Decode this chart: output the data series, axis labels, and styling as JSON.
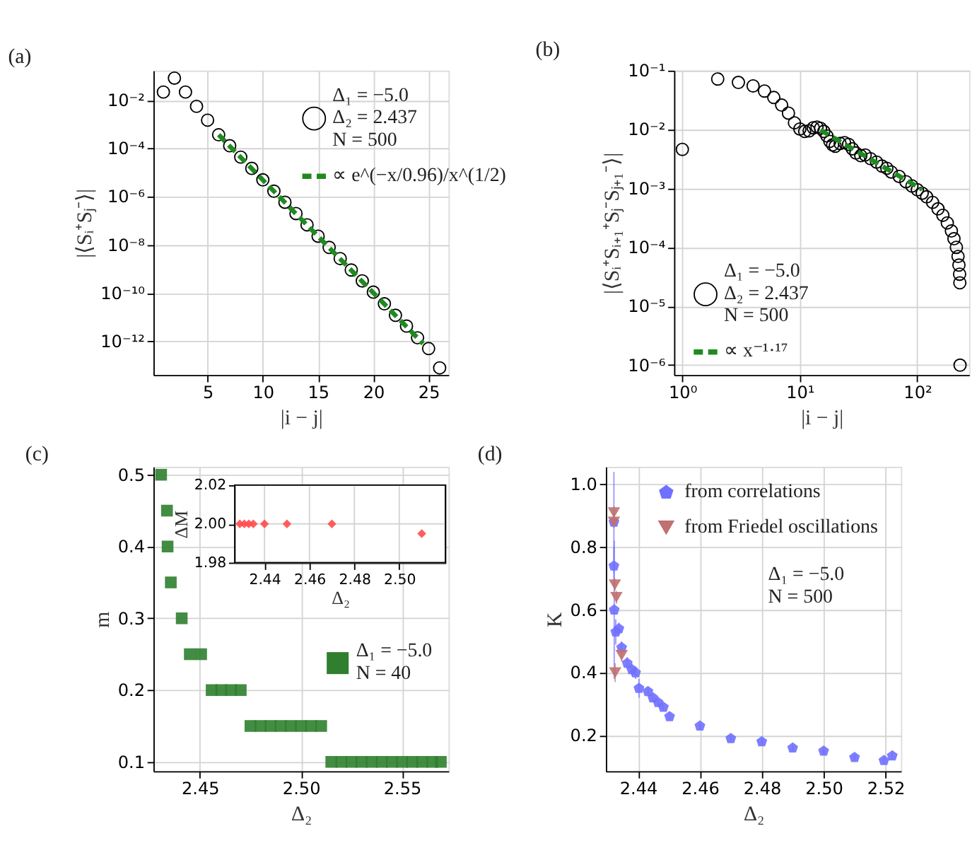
{
  "chart_data": [
    {
      "type": "scatter",
      "title": "(a)",
      "xlabel": "|i − j|",
      "ylabel": "|⟨Sᵢ⁺Sⱼ⁻⟩|",
      "log": "y",
      "grid": true,
      "legend": "top right",
      "xlim": [
        0.1,
        26.8
      ],
      "xticks": [
        5,
        10,
        15,
        20,
        25
      ],
      "ylim": [
        4e-14,
        0.17
      ],
      "yticks": [
        {
          "value": 0.01,
          "label": "10⁻²"
        },
        {
          "value": 0.0001,
          "label": "10⁻⁴"
        },
        {
          "value": 1e-06,
          "label": "10⁻⁶"
        },
        {
          "value": 1e-08,
          "label": "10⁻⁸"
        },
        {
          "value": 1e-10,
          "label": "10⁻¹⁰"
        },
        {
          "value": 1e-12,
          "label": "10⁻¹²"
        }
      ],
      "series": [
        {
          "name": "Δ₁ = −5.0\nΔ₂ = 2.437\nN = 500",
          "color": "#000000",
          "marker": "circle",
          "x": [
            1,
            2,
            3,
            4,
            5,
            6,
            7,
            8,
            9,
            10,
            11,
            12,
            13,
            14,
            15,
            16,
            17,
            18,
            19,
            20,
            21,
            22,
            23,
            24,
            25,
            26
          ],
          "values": [
            0.022,
            0.083,
            0.022,
            0.0056,
            0.0015,
            0.00037,
            0.00013,
            4.4e-05,
            1.5e-05,
            5e-06,
            1.7e-06,
            5.9e-07,
            2e-07,
            6.8e-08,
            2.3e-08,
            7.9e-09,
            2.7e-09,
            9.1e-10,
            3.2e-10,
            1.1e-10,
            3.6e-11,
            1.2e-11,
            4.3e-12,
            1.4e-12,
            5e-13,
            7.9e-14
          ]
        },
        {
          "name": "∝ e^(−x/0.96)/x^(1/2)",
          "type": "line",
          "color": "#1f8a1f",
          "line_style": "dashed",
          "marker": "none",
          "x": [
            6,
            24.5
          ],
          "values": [
            0.00037,
            8e-13
          ]
        }
      ]
    },
    {
      "type": "scatter",
      "title": "(b)",
      "xlabel": "|i − j|",
      "ylabel": "|⟨Sᵢ⁺Sᵢ₊₁⁺Sⱼ⁻Sⱼ₊₁⁻⟩|",
      "log": "xy",
      "grid": true,
      "legend": "bottom left",
      "xlim": [
        0.85,
        276
      ],
      "xticks": [
        {
          "value": 1,
          "label": "10⁰"
        },
        {
          "value": 10,
          "label": "10¹"
        },
        {
          "value": 100,
          "label": "10²"
        }
      ],
      "ylim": [
        6.8e-07,
        0.1
      ],
      "yticks": [
        {
          "value": 0.1,
          "label": "10⁻¹"
        },
        {
          "value": 0.01,
          "label": "10⁻²"
        },
        {
          "value": 0.001,
          "label": "10⁻³"
        },
        {
          "value": 0.0001,
          "label": "10⁻⁴"
        },
        {
          "value": 1e-05,
          "label": "10⁻⁵"
        },
        {
          "value": 1e-06,
          "label": "10⁻⁶"
        }
      ],
      "series": [
        {
          "name": "Δ₁ = −5.0\nΔ₂ = 2.437\nN = 500",
          "color": "#000000",
          "marker": "circle",
          "x": [
            1,
            2,
            3,
            4,
            5,
            6,
            7,
            8,
            9,
            10,
            11,
            12,
            13,
            14,
            15,
            16,
            17,
            18,
            19,
            20,
            22,
            24,
            26,
            28,
            30,
            33,
            36,
            40,
            45,
            50,
            55,
            60,
            70,
            80,
            90,
            100,
            110,
            120,
            135,
            150,
            165,
            180,
            195,
            205,
            215,
            222,
            226,
            229,
            230,
            231
          ],
          "values": [
            0.0046,
            0.072,
            0.063,
            0.055,
            0.045,
            0.035,
            0.026,
            0.019,
            0.013,
            0.0102,
            0.0093,
            0.0095,
            0.0107,
            0.011,
            0.0105,
            0.0093,
            0.0078,
            0.0063,
            0.0055,
            0.0052,
            0.0058,
            0.006,
            0.0056,
            0.0047,
            0.004,
            0.0036,
            0.0037,
            0.0032,
            0.0028,
            0.0024,
            0.0022,
            0.0019,
            0.0016,
            0.0013,
            0.0011,
            0.00095,
            0.00083,
            0.00072,
            0.00058,
            0.00045,
            0.00035,
            0.00026,
            0.00019,
            0.00014,
            0.0001,
            7e-05,
            5e-05,
            3.5e-05,
            2.5e-05,
            1e-06
          ]
        },
        {
          "name": "∝ x⁻¹·¹⁷",
          "type": "line",
          "color": "#1f8a1f",
          "line_style": "dashed",
          "marker": "none",
          "x": [
            15,
            110
          ],
          "values": [
            0.0098,
            0.00096
          ]
        }
      ]
    },
    {
      "type": "scatter",
      "title": "(c)",
      "xlabel": "Δ₂",
      "ylabel": "m",
      "grid": true,
      "legend": "right",
      "xlim": [
        2.427,
        2.573
      ],
      "xticks": [
        2.45,
        {
          "value": 2.5,
          "label": "2.50"
        },
        2.55
      ],
      "ylim": [
        0.087,
        0.511
      ],
      "yticks": [
        0.1,
        0.2,
        0.3,
        0.4,
        0.5
      ],
      "series": [
        {
          "name": "Δ₁ = −5.0\nN = 40",
          "color": "#2f7f2f",
          "marker": "square",
          "x": [
            2.4308,
            2.4337,
            2.434,
            2.4356,
            2.441,
            2.445,
            2.4506,
            2.4558,
            2.4606,
            2.4654,
            2.4702,
            2.475,
            2.48,
            2.485,
            2.49,
            2.495,
            2.5,
            2.505,
            2.51,
            2.515,
            2.52,
            2.525,
            2.53,
            2.535,
            2.54,
            2.545,
            2.55,
            2.555,
            2.56,
            2.565,
            2.5692
          ],
          "values": [
            0.5,
            0.45,
            0.4,
            0.35,
            0.3,
            0.25,
            0.25,
            0.2,
            0.2,
            0.2,
            0.2,
            0.15,
            0.15,
            0.15,
            0.15,
            0.15,
            0.15,
            0.15,
            0.15,
            0.1,
            0.1,
            0.1,
            0.1,
            0.1,
            0.1,
            0.1,
            0.1,
            0.1,
            0.1,
            0.1,
            0.1
          ]
        }
      ]
    },
    {
      "type": "scatter",
      "xlabel": "Δ₂",
      "ylabel": "ΔM",
      "grid": true,
      "xlim": [
        2.4268,
        2.5206
      ],
      "xticks": [
        2.44,
        2.46,
        2.48,
        {
          "value": 2.5,
          "label": "2.50"
        }
      ],
      "ylim": [
        1.98,
        2.02
      ],
      "yticks": [
        1.98,
        {
          "value": 2,
          "label": "2.00"
        },
        2.02
      ],
      "series": [
        {
          "color": "#ff4d4d",
          "marker": "diamond",
          "x": [
            2.429,
            2.431,
            2.433,
            2.435,
            2.44,
            2.45,
            2.47,
            2.51
          ],
          "values": [
            2,
            2,
            2,
            2,
            2,
            2,
            2,
            1.995
          ]
        }
      ]
    },
    {
      "type": "scatter",
      "title": "(d)",
      "xlabel": "Δ₂",
      "ylabel": "K",
      "grid": true,
      "legend": "top",
      "annotations": [
        "Δ₁ = −5.0\nN = 500"
      ],
      "xlim": [
        2.4296,
        2.525
      ],
      "xticks": [
        2.44,
        2.46,
        2.48,
        {
          "value": 2.5,
          "label": "2.50"
        },
        2.52
      ],
      "ylim": [
        0.086,
        1.056
      ],
      "yticks": [
        0.2,
        0.4,
        0.6,
        0.8,
        {
          "value": 1,
          "label": "1.0"
        }
      ],
      "series": [
        {
          "name": "from correlations",
          "color": "#7070ff",
          "x": [
            2.4322,
            2.4322,
            2.4323,
            2.4328,
            2.4338,
            2.4347,
            2.4365,
            2.438,
            2.4392,
            2.4403,
            2.4432,
            2.4448,
            2.4465,
            2.4482,
            2.4502,
            2.46,
            2.47,
            2.48,
            2.49,
            2.5,
            2.51,
            2.5195,
            2.5222
          ],
          "values": [
            0.88,
            0.74,
            0.6,
            0.53,
            0.54,
            0.48,
            0.43,
            0.41,
            0.4,
            0.35,
            0.34,
            0.32,
            0.305,
            0.29,
            0.26,
            0.23,
            0.19,
            0.18,
            0.16,
            0.15,
            0.13,
            0.12,
            0.135
          ],
          "errors": [
            0.16,
            0.06,
            0.22,
            0.04,
            0.02,
            0.02,
            0.02,
            0.02,
            0.02,
            0.03,
            0.01,
            0.01,
            0.01,
            0.01,
            0.01,
            0.01,
            0.01,
            0.01,
            0.01,
            0.01,
            0.01,
            0.01,
            0.01
          ]
        },
        {
          "name": "from Friedel oscillations",
          "color": "#c07070",
          "marker": "triangle",
          "x": [
            2.4322,
            2.4322,
            2.4325,
            2.433,
            2.4347,
            2.4326
          ],
          "values": [
            0.91,
            0.88,
            0.68,
            0.64,
            0.455,
            0.4
          ],
          "errors": [
            0.02,
            0.02,
            0.02,
            0.02,
            0.02,
            0.03
          ]
        }
      ]
    }
  ]
}
